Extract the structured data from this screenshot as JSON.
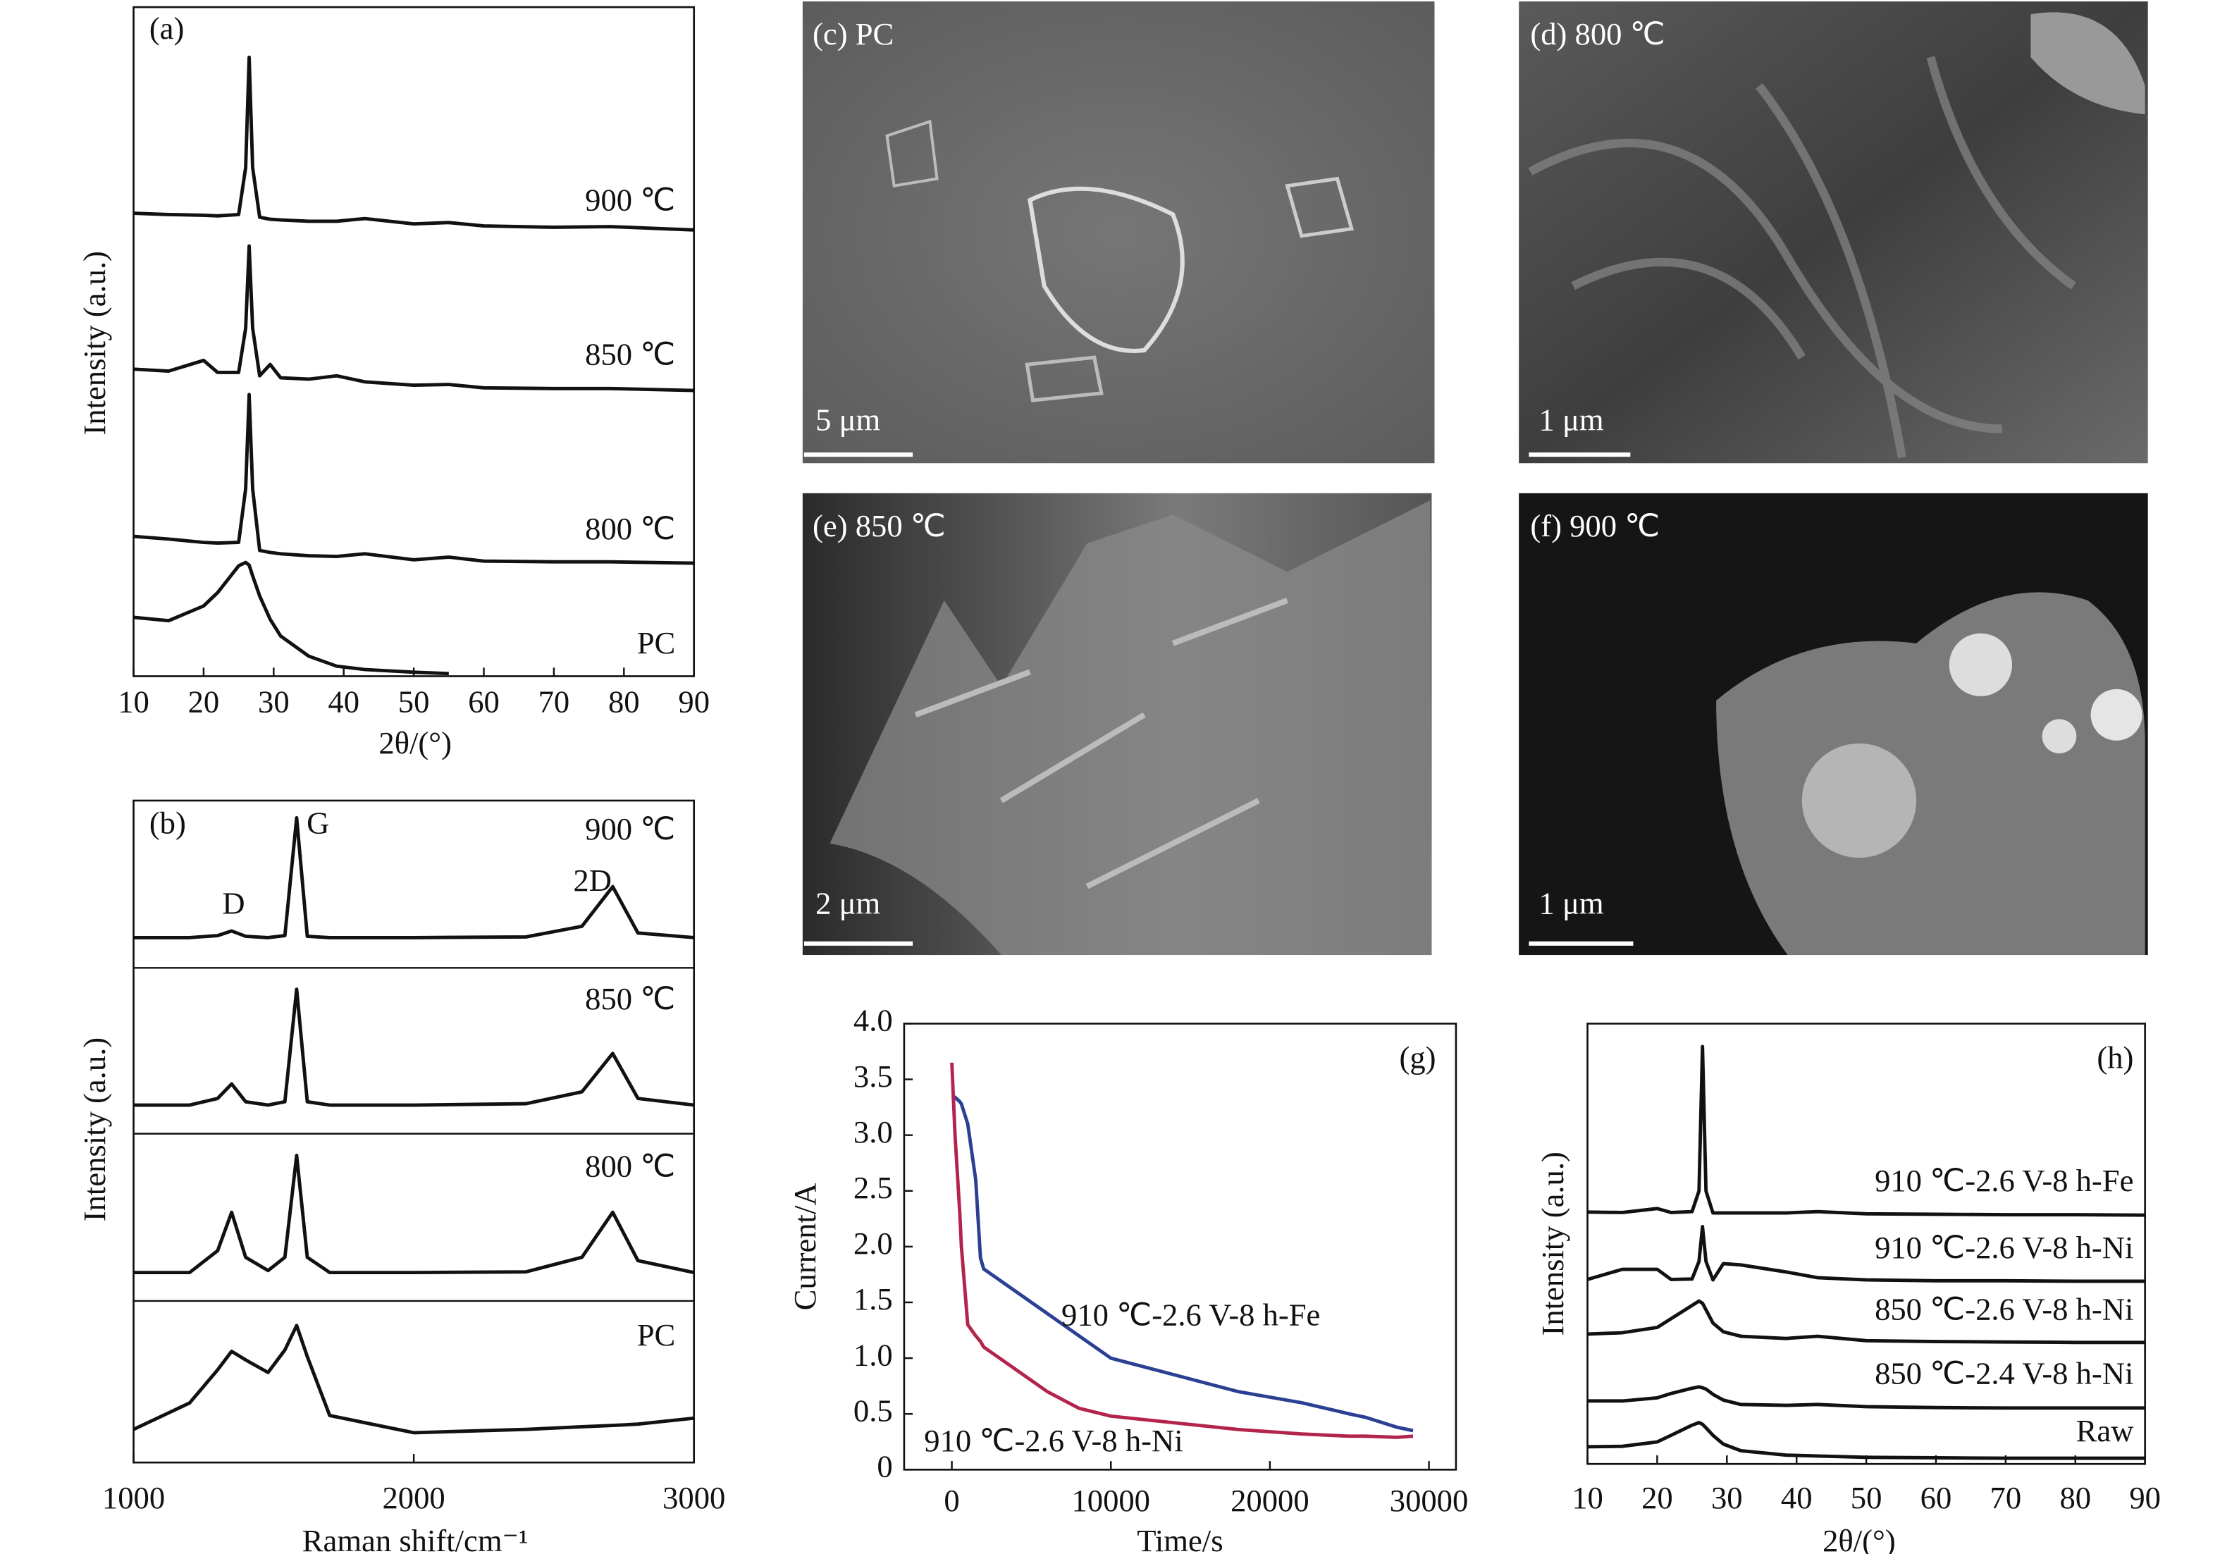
{
  "chart_data": [
    {
      "type": "line",
      "panel_label": "(a)",
      "x_label": "2θ/(°)",
      "y_label": "Intensity (a.u.)",
      "x": [
        10,
        15,
        20,
        22,
        25,
        26,
        26.5,
        27,
        28,
        29.5,
        31,
        35,
        39,
        43,
        50,
        55,
        60,
        70,
        78,
        90
      ],
      "xlim": [
        10,
        90
      ],
      "xticks": [
        10,
        20,
        30,
        40,
        50,
        60,
        70,
        80,
        90
      ],
      "ylim": [
        0,
        100
      ],
      "series": [
        {
          "name": "900 ℃",
          "color": "#111111",
          "values": [
            69.2,
            69,
            68.9,
            68.8,
            69,
            76,
            92.5,
            76,
            68.6,
            68.3,
            68.2,
            68,
            68,
            68.4,
            67.6,
            67.8,
            67.3,
            67.1,
            67.2,
            66.7
          ]
        },
        {
          "name": "850 ℃",
          "color": "#111111",
          "values": [
            45.9,
            45.6,
            47.2,
            45.4,
            45.4,
            52,
            64.3,
            52,
            44.9,
            46.6,
            44.6,
            44.4,
            44.9,
            44,
            43.5,
            43.6,
            43.1,
            43,
            43,
            42.7
          ]
        },
        {
          "name": "800 ℃",
          "color": "#111111",
          "values": [
            20.9,
            20.5,
            20,
            19.9,
            20,
            28,
            42.1,
            28,
            18.8,
            18.5,
            18.3,
            18,
            17.9,
            18.3,
            17.4,
            17.8,
            17.2,
            17.1,
            17.1,
            16.9
          ]
        },
        {
          "name": "PC",
          "color": "#111111",
          "values": [
            8.8,
            8.3,
            10.5,
            12.5,
            16.5,
            17,
            16.6,
            15,
            12,
            8.5,
            6,
            3,
            1.5,
            1,
            0.6,
            0.4,
            null,
            null,
            null,
            null
          ]
        }
      ]
    },
    {
      "type": "line",
      "panel_label": "(b)",
      "x_label": "Raman shift/cm⁻¹",
      "y_label": "Intensity (a.u.)",
      "x": [
        1000,
        1200,
        1300,
        1350,
        1400,
        1480,
        1540,
        1582,
        1620,
        1700,
        2000,
        2400,
        2600,
        2710,
        2800,
        3000
      ],
      "xlim": [
        1000,
        3000
      ],
      "xticks": [
        1000,
        2000,
        3000
      ],
      "ylim": [
        0,
        100
      ],
      "annotations": [
        "D",
        "G",
        "2D"
      ],
      "series": [
        {
          "name": "900 ℃",
          "color": "#111111",
          "values": [
            79.3,
            79.3,
            79.6,
            80.3,
            79.5,
            79.3,
            79.6,
            97.4,
            79.5,
            79.3,
            79.3,
            79.4,
            81,
            87,
            80,
            79.3
          ]
        },
        {
          "name": "850 ℃",
          "color": "#111111",
          "values": [
            54,
            54,
            55,
            57.2,
            54.5,
            54,
            54.5,
            71.5,
            54.5,
            54,
            54,
            54.2,
            56,
            61.8,
            55,
            54
          ]
        },
        {
          "name": "800 ℃",
          "color": "#111111",
          "values": [
            28.7,
            28.7,
            32,
            37.8,
            31,
            29,
            31,
            46.4,
            31,
            28.7,
            28.7,
            28.8,
            31,
            37.8,
            30.5,
            28.7
          ]
        },
        {
          "name": "PC",
          "color": "#111111",
          "values": [
            5,
            9,
            14,
            16.8,
            15.5,
            13.6,
            17,
            20.7,
            16,
            7.1,
            4.5,
            5,
            5.4,
            5.6,
            5.8,
            6.7
          ]
        }
      ]
    },
    {
      "type": "line",
      "panel_label": "(g)",
      "x_label": "Time/s",
      "y_label": "Current/A",
      "x": [
        0,
        200,
        500,
        600,
        1000,
        1500,
        1800,
        2000,
        2500,
        4000,
        6000,
        8000,
        10000,
        14000,
        18000,
        22000,
        25000,
        26000,
        28000,
        29000
      ],
      "xlim": [
        -3000,
        31700
      ],
      "xticks": [
        0,
        10000,
        20000,
        30000
      ],
      "ylim": [
        0,
        4
      ],
      "yticks": [
        0,
        0.5,
        {
          "value": 1,
          "label": "1.0"
        },
        1.5,
        {
          "value": 2,
          "label": "2.0"
        },
        2.5,
        {
          "value": 3,
          "label": "3.0"
        },
        3.5,
        {
          "value": 4,
          "label": "4.0"
        }
      ],
      "series": [
        {
          "name": "910 ℃-2.6 V-8 h-Fe",
          "color": "#2b3f93",
          "values": [
            3.35,
            3.34,
            3.3,
            3.28,
            3.1,
            2.6,
            1.9,
            1.8,
            1.75,
            1.6,
            1.4,
            1.2,
            1,
            0.85,
            0.7,
            0.6,
            0.5,
            0.47,
            0.38,
            0.35
          ]
        },
        {
          "name": "910 ℃-2.6 V-8 h-Ni",
          "color": "#b3244c",
          "values": [
            3.65,
            3,
            2.3,
            2,
            1.3,
            1.2,
            1.15,
            1.1,
            1.05,
            0.9,
            0.7,
            0.55,
            0.48,
            0.42,
            0.36,
            0.32,
            0.3,
            0.3,
            0.29,
            0.3
          ]
        }
      ]
    },
    {
      "type": "line",
      "panel_label": "(h)",
      "x_label": "2θ/(°)",
      "y_label": "Intensity (a.u.)",
      "x": [
        10,
        15,
        20,
        22,
        25,
        26,
        26.5,
        27,
        28,
        29.5,
        32,
        38.5,
        43,
        50,
        60,
        70,
        80,
        90
      ],
      "xlim": [
        10,
        90
      ],
      "xticks": [
        10,
        20,
        30,
        40,
        50,
        60,
        70,
        80,
        90
      ],
      "ylim": [
        0,
        100
      ],
      "series": [
        {
          "name": "910 ℃-2.6 V-8 h-Fe",
          "color": "#111111",
          "values": [
            57.2,
            57.1,
            58,
            57.1,
            57.3,
            62,
            94.8,
            62,
            57,
            57,
            57,
            57,
            57.3,
            56.8,
            56.7,
            56.6,
            56.6,
            56.5
          ]
        },
        {
          "name": "910 ℃-2.6 V-8 h-Ni",
          "color": "#111111",
          "values": [
            41.9,
            44.2,
            44.2,
            41.9,
            42,
            46,
            53.9,
            46,
            41.8,
            45.5,
            45.2,
            43.6,
            42.3,
            41.8,
            41.6,
            41.6,
            41.5,
            41.5
          ]
        },
        {
          "name": "850 ℃-2.6 V-8 h-Ni",
          "color": "#111111",
          "values": [
            29.5,
            29.8,
            31,
            33,
            36,
            37,
            36.5,
            35,
            32,
            30,
            29,
            28.5,
            29,
            28,
            27.8,
            27.7,
            27.6,
            27.6
          ]
        },
        {
          "name": "850 ℃-2.4 V-8 h-Ni",
          "color": "#111111",
          "values": [
            14.3,
            14.3,
            15,
            16,
            17.2,
            17.5,
            17.3,
            17,
            15.8,
            14.5,
            13.5,
            13.3,
            13.5,
            13,
            12.8,
            12.7,
            12.7,
            12.7
          ]
        },
        {
          "name": "Raw",
          "color": "#111111",
          "values": [
            3.9,
            4,
            5,
            6.5,
            8.8,
            9.4,
            9,
            8.2,
            6.5,
            4.5,
            3,
            2,
            1.8,
            1.5,
            1.4,
            1.3,
            1.3,
            1.3
          ]
        }
      ]
    }
  ],
  "images": [
    {
      "label": "(c) PC",
      "scale": "5 μm"
    },
    {
      "label": "(d) 800 ℃",
      "scale": "1 μm"
    },
    {
      "label": "(e) 850 ℃",
      "scale": "2 μm"
    },
    {
      "label": "(f) 900 ℃",
      "scale": "1 μm"
    }
  ]
}
